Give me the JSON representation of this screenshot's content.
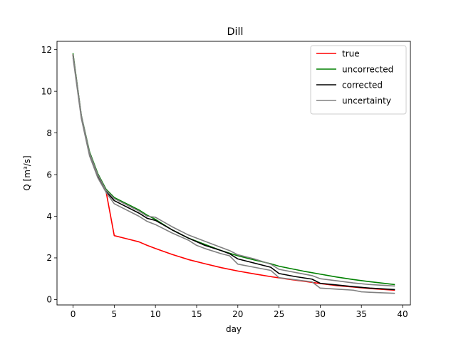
{
  "chart_data": {
    "type": "line",
    "title": "Dill",
    "xlabel": "day",
    "ylabel": "Q [m³/s]",
    "xlim": [
      -1.95,
      40.95
    ],
    "ylim": [
      -0.26,
      12.4
    ],
    "xticks": [
      0,
      5,
      10,
      15,
      20,
      25,
      30,
      35,
      40
    ],
    "yticks": [
      0,
      2,
      4,
      6,
      8,
      10,
      12
    ],
    "grid": false,
    "legend_position": "top-right",
    "series": [
      {
        "name": "true",
        "color": "#ff0000",
        "x": [
          0,
          1,
          2,
          3,
          4,
          5,
          6,
          7,
          8,
          9,
          10,
          12,
          14,
          16,
          18,
          20,
          22,
          24,
          25,
          26,
          28,
          30,
          32,
          34,
          36,
          39
        ],
        "y": [
          11.75,
          8.8,
          7.0,
          6.0,
          5.2,
          3.07,
          2.97,
          2.87,
          2.77,
          2.6,
          2.45,
          2.17,
          1.92,
          1.72,
          1.53,
          1.37,
          1.23,
          1.1,
          1.04,
          0.98,
          0.88,
          0.77,
          0.67,
          0.6,
          0.53,
          0.45
        ]
      },
      {
        "name": "uncorrected",
        "color": "#008000",
        "x": [
          0,
          1,
          2,
          3,
          4,
          5,
          6,
          7,
          8,
          9,
          10,
          12,
          14,
          16,
          18,
          20,
          22,
          24,
          25,
          26,
          28,
          30,
          32,
          34,
          36,
          39
        ],
        "y": [
          11.8,
          8.85,
          7.1,
          6.05,
          5.3,
          4.9,
          4.7,
          4.5,
          4.3,
          4.05,
          3.85,
          3.35,
          2.95,
          2.65,
          2.35,
          2.1,
          1.9,
          1.72,
          1.6,
          1.52,
          1.36,
          1.22,
          1.08,
          0.96,
          0.86,
          0.72
        ]
      },
      {
        "name": "corrected",
        "color": "#000000",
        "x": [
          0,
          1,
          2,
          3,
          4,
          5,
          6,
          7,
          8,
          9,
          10,
          12,
          14,
          16,
          18,
          19,
          20,
          22,
          24,
          25,
          27,
          29,
          30,
          32,
          34,
          36,
          39
        ],
        "y": [
          11.7,
          8.8,
          7.0,
          5.95,
          5.2,
          4.75,
          4.55,
          4.35,
          4.15,
          3.9,
          3.8,
          3.35,
          2.95,
          2.6,
          2.35,
          2.2,
          1.95,
          1.75,
          1.55,
          1.25,
          1.1,
          0.98,
          0.78,
          0.7,
          0.62,
          0.55,
          0.48
        ]
      },
      {
        "name": "uncertainty",
        "color": "#808080",
        "x": [
          0,
          1,
          2,
          3,
          4,
          5,
          6,
          7,
          8,
          9,
          10,
          12,
          14,
          15,
          16,
          18,
          19,
          20,
          22,
          24,
          25,
          27,
          29,
          30,
          32,
          34,
          35,
          36,
          39
        ],
        "y": [
          11.6,
          8.7,
          6.9,
          5.85,
          5.15,
          4.6,
          4.4,
          4.2,
          4.0,
          3.75,
          3.6,
          3.2,
          2.85,
          2.6,
          2.45,
          2.2,
          2.1,
          1.7,
          1.55,
          1.4,
          1.05,
          0.95,
          0.85,
          0.55,
          0.5,
          0.45,
          0.37,
          0.35,
          0.3
        ]
      },
      {
        "name": "",
        "color": "#808080",
        "x": [
          0,
          1,
          2,
          3,
          4,
          5,
          6,
          7,
          8,
          9,
          10,
          12,
          14,
          16,
          18,
          19,
          20,
          22,
          24,
          25,
          27,
          29,
          30,
          32,
          34,
          36,
          39
        ],
        "y": [
          11.75,
          8.85,
          7.05,
          6.0,
          5.25,
          4.85,
          4.65,
          4.45,
          4.25,
          4.0,
          3.95,
          3.5,
          3.1,
          2.8,
          2.5,
          2.35,
          2.15,
          1.95,
          1.7,
          1.45,
          1.3,
          1.15,
          1.0,
          0.9,
          0.8,
          0.72,
          0.65
        ]
      }
    ]
  }
}
